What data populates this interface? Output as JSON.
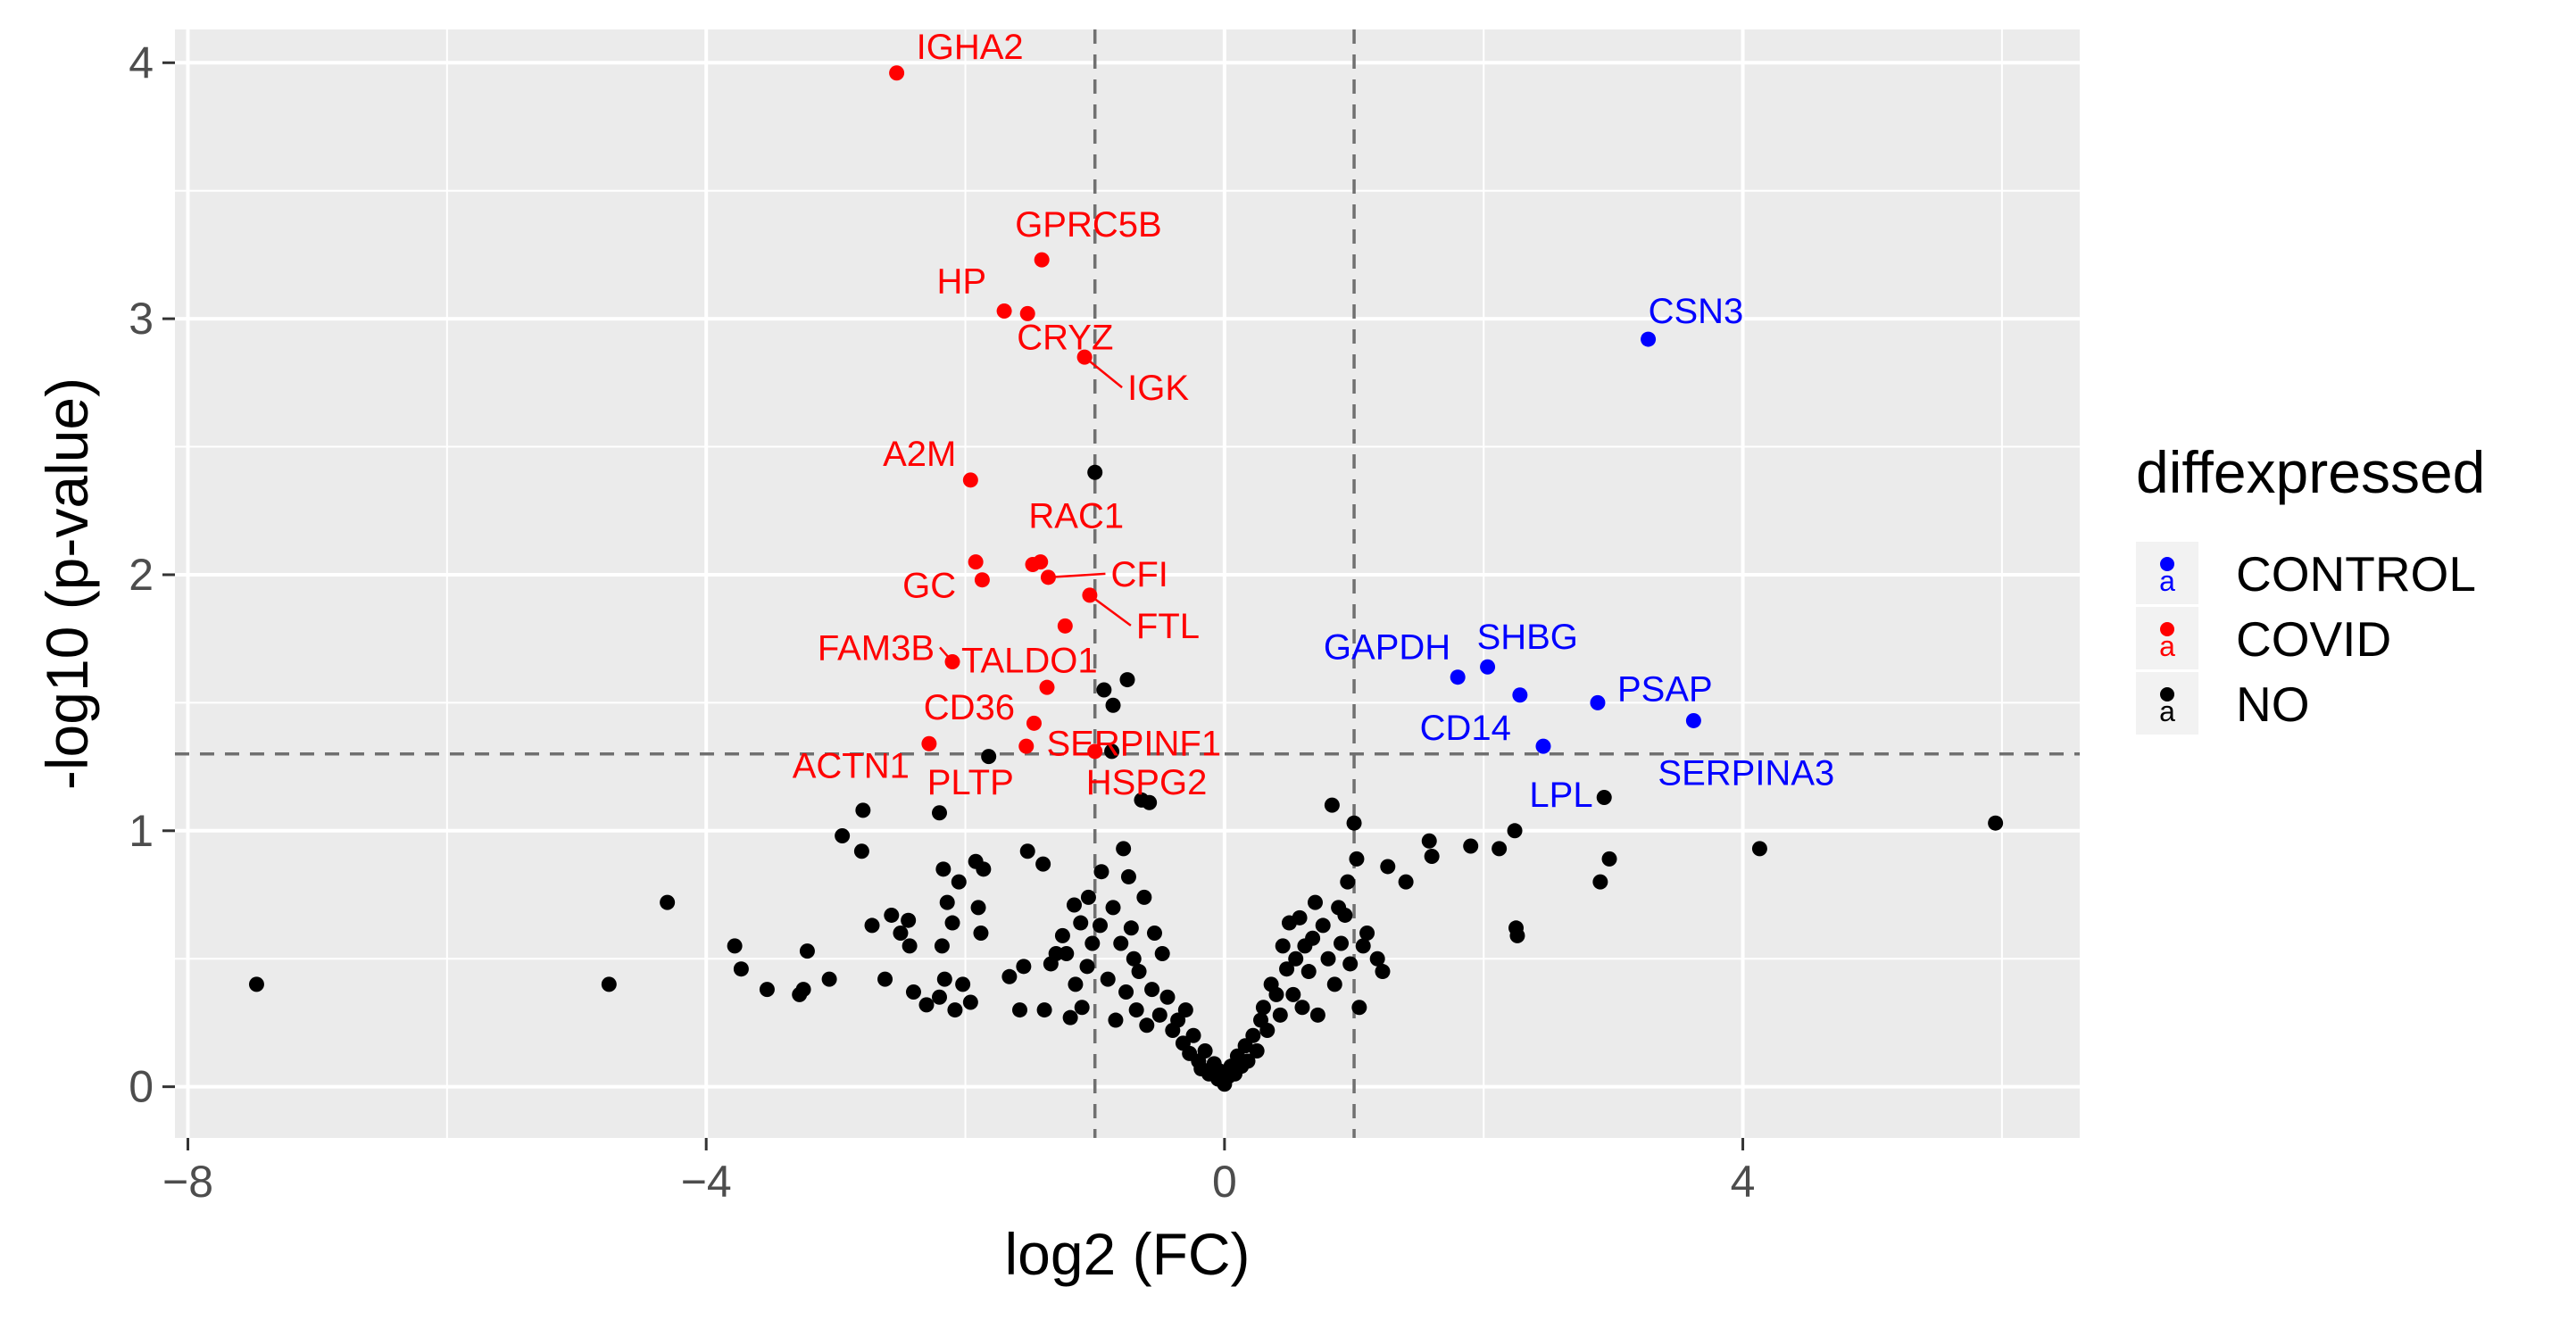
{
  "chart_data": {
    "type": "scatter",
    "title": "",
    "xlabel": "log2 (FC)",
    "ylabel": "-log10 (p-value)",
    "xlim": [
      -8.1,
      6.6
    ],
    "ylim": [
      -0.2,
      4.13
    ],
    "x_ticks": [
      -8,
      -4,
      0,
      4
    ],
    "x_tick_labels": [
      "−8",
      "−4",
      "0",
      "4"
    ],
    "y_ticks": [
      0,
      1,
      2,
      3,
      4
    ],
    "y_tick_labels": [
      "0",
      "1",
      "2",
      "3",
      "4"
    ],
    "grid": true,
    "background": "#ebebeb",
    "thresholds": {
      "vlines": [
        -1,
        1
      ],
      "hline": 1.3,
      "style": "dashed",
      "color": "#707070"
    },
    "legend": {
      "title": "diffexpressed",
      "placement": "right",
      "key_glyph": "a",
      "entries": [
        {
          "label": "CONTROL",
          "color": "#0000ff"
        },
        {
          "label": "COVID",
          "color": "#ff0000"
        },
        {
          "label": "NO",
          "color": "#000000"
        }
      ]
    },
    "colors": {
      "CONTROL": "#0000ff",
      "COVID": "#ff0000",
      "NO": "#000000"
    },
    "series": [
      {
        "name": "CONTROL",
        "points": [
          {
            "x": 3.27,
            "y": 2.92
          },
          {
            "x": 1.8,
            "y": 1.6
          },
          {
            "x": 2.03,
            "y": 1.64
          },
          {
            "x": 2.28,
            "y": 1.53
          },
          {
            "x": 2.46,
            "y": 1.33
          },
          {
            "x": 2.88,
            "y": 1.5
          },
          {
            "x": 3.62,
            "y": 1.43
          }
        ]
      },
      {
        "name": "COVID",
        "points": [
          {
            "x": -2.53,
            "y": 3.96
          },
          {
            "x": -1.41,
            "y": 3.23
          },
          {
            "x": -1.7,
            "y": 3.03
          },
          {
            "x": -1.52,
            "y": 3.02
          },
          {
            "x": -1.08,
            "y": 2.85
          },
          {
            "x": -1.96,
            "y": 2.37
          },
          {
            "x": -1.92,
            "y": 2.05
          },
          {
            "x": -1.87,
            "y": 1.98
          },
          {
            "x": -1.48,
            "y": 2.04
          },
          {
            "x": -1.42,
            "y": 2.05
          },
          {
            "x": -1.36,
            "y": 1.99
          },
          {
            "x": -1.04,
            "y": 1.92
          },
          {
            "x": -1.23,
            "y": 1.8
          },
          {
            "x": -2.1,
            "y": 1.66
          },
          {
            "x": -1.37,
            "y": 1.56
          },
          {
            "x": -1.47,
            "y": 1.42
          },
          {
            "x": -1.53,
            "y": 1.33
          },
          {
            "x": -2.28,
            "y": 1.34
          },
          {
            "x": -1.0,
            "y": 1.31
          }
        ]
      },
      {
        "name": "NO",
        "points": [
          {
            "x": -7.47,
            "y": 0.4
          },
          {
            "x": -4.75,
            "y": 0.4
          },
          {
            "x": -4.3,
            "y": 0.72
          },
          {
            "x": -3.78,
            "y": 0.55
          },
          {
            "x": -3.73,
            "y": 0.46
          },
          {
            "x": -3.53,
            "y": 0.38
          },
          {
            "x": -3.25,
            "y": 0.38
          },
          {
            "x": -3.28,
            "y": 0.36
          },
          {
            "x": -3.22,
            "y": 0.53
          },
          {
            "x": -3.05,
            "y": 0.42
          },
          {
            "x": -2.95,
            "y": 0.98
          },
          {
            "x": -2.8,
            "y": 0.92
          },
          {
            "x": -2.79,
            "y": 1.08
          },
          {
            "x": -2.72,
            "y": 0.63
          },
          {
            "x": -2.62,
            "y": 0.42
          },
          {
            "x": -2.57,
            "y": 0.67
          },
          {
            "x": -2.5,
            "y": 0.6
          },
          {
            "x": -2.43,
            "y": 0.55
          },
          {
            "x": -2.44,
            "y": 0.65
          },
          {
            "x": -2.4,
            "y": 0.37
          },
          {
            "x": -2.3,
            "y": 0.32
          },
          {
            "x": -2.2,
            "y": 1.07
          },
          {
            "x": -2.17,
            "y": 0.85
          },
          {
            "x": -2.14,
            "y": 0.72
          },
          {
            "x": -2.05,
            "y": 0.8
          },
          {
            "x": -2.1,
            "y": 0.64
          },
          {
            "x": -2.18,
            "y": 0.55
          },
          {
            "x": -2.16,
            "y": 0.42
          },
          {
            "x": -2.2,
            "y": 0.35
          },
          {
            "x": -2.08,
            "y": 0.3
          },
          {
            "x": -2.02,
            "y": 0.4
          },
          {
            "x": -1.96,
            "y": 0.33
          },
          {
            "x": -1.92,
            "y": 0.88
          },
          {
            "x": -1.86,
            "y": 0.85
          },
          {
            "x": -1.9,
            "y": 0.7
          },
          {
            "x": -1.88,
            "y": 0.6
          },
          {
            "x": -1.82,
            "y": 1.29
          },
          {
            "x": -1.66,
            "y": 0.43
          },
          {
            "x": -1.58,
            "y": 0.3
          },
          {
            "x": -1.55,
            "y": 0.47
          },
          {
            "x": -1.52,
            "y": 0.92
          },
          {
            "x": -1.4,
            "y": 0.87
          },
          {
            "x": -1.39,
            "y": 0.3
          },
          {
            "x": -1.34,
            "y": 0.48
          },
          {
            "x": -1.3,
            "y": 0.52
          },
          {
            "x": -1.25,
            "y": 0.59
          },
          {
            "x": -1.22,
            "y": 0.52
          },
          {
            "x": -1.16,
            "y": 0.71
          },
          {
            "x": -1.19,
            "y": 0.27
          },
          {
            "x": -1.15,
            "y": 0.4
          },
          {
            "x": -1.11,
            "y": 0.64
          },
          {
            "x": -1.1,
            "y": 0.31
          },
          {
            "x": -1.06,
            "y": 0.47
          },
          {
            "x": -1.05,
            "y": 0.74
          },
          {
            "x": -1.02,
            "y": 0.56
          },
          {
            "x": -1.0,
            "y": 2.4
          },
          {
            "x": -0.96,
            "y": 0.63
          },
          {
            "x": -0.93,
            "y": 1.55
          },
          {
            "x": -0.95,
            "y": 0.84
          },
          {
            "x": -0.9,
            "y": 0.42
          },
          {
            "x": -0.87,
            "y": 1.31
          },
          {
            "x": -0.86,
            "y": 1.49
          },
          {
            "x": -0.86,
            "y": 0.7
          },
          {
            "x": -0.84,
            "y": 0.26
          },
          {
            "x": -0.8,
            "y": 0.56
          },
          {
            "x": -0.78,
            "y": 0.93
          },
          {
            "x": -0.75,
            "y": 1.59
          },
          {
            "x": -0.76,
            "y": 0.37
          },
          {
            "x": -0.74,
            "y": 0.82
          },
          {
            "x": -0.72,
            "y": 0.62
          },
          {
            "x": -0.7,
            "y": 0.5
          },
          {
            "x": -0.68,
            "y": 0.3
          },
          {
            "x": -0.66,
            "y": 0.45
          },
          {
            "x": -0.64,
            "y": 1.12
          },
          {
            "x": -0.62,
            "y": 0.74
          },
          {
            "x": -0.6,
            "y": 0.24
          },
          {
            "x": -0.58,
            "y": 1.11
          },
          {
            "x": -0.56,
            "y": 0.38
          },
          {
            "x": -0.54,
            "y": 0.6
          },
          {
            "x": -0.5,
            "y": 0.28
          },
          {
            "x": -0.48,
            "y": 0.52
          },
          {
            "x": -0.44,
            "y": 0.35
          },
          {
            "x": -0.4,
            "y": 0.22
          },
          {
            "x": -0.36,
            "y": 0.26
          },
          {
            "x": -0.32,
            "y": 0.17
          },
          {
            "x": -0.3,
            "y": 0.3
          },
          {
            "x": -0.27,
            "y": 0.13
          },
          {
            "x": -0.24,
            "y": 0.2
          },
          {
            "x": -0.2,
            "y": 0.1
          },
          {
            "x": -0.18,
            "y": 0.07
          },
          {
            "x": -0.15,
            "y": 0.14
          },
          {
            "x": -0.12,
            "y": 0.05
          },
          {
            "x": -0.08,
            "y": 0.09
          },
          {
            "x": -0.05,
            "y": 0.03
          },
          {
            "x": -0.03,
            "y": 0.06
          },
          {
            "x": 0.0,
            "y": 0.01
          },
          {
            "x": 0.03,
            "y": 0.04
          },
          {
            "x": 0.05,
            "y": 0.08
          },
          {
            "x": 0.08,
            "y": 0.05
          },
          {
            "x": 0.1,
            "y": 0.12
          },
          {
            "x": 0.13,
            "y": 0.08
          },
          {
            "x": 0.16,
            "y": 0.16
          },
          {
            "x": 0.18,
            "y": 0.1
          },
          {
            "x": 0.22,
            "y": 0.2
          },
          {
            "x": 0.25,
            "y": 0.14
          },
          {
            "x": 0.28,
            "y": 0.26
          },
          {
            "x": 0.3,
            "y": 0.31
          },
          {
            "x": 0.33,
            "y": 0.22
          },
          {
            "x": 0.36,
            "y": 0.4
          },
          {
            "x": 0.4,
            "y": 0.36
          },
          {
            "x": 0.43,
            "y": 0.28
          },
          {
            "x": 0.45,
            "y": 0.55
          },
          {
            "x": 0.48,
            "y": 0.46
          },
          {
            "x": 0.5,
            "y": 0.64
          },
          {
            "x": 0.53,
            "y": 0.36
          },
          {
            "x": 0.55,
            "y": 0.5
          },
          {
            "x": 0.58,
            "y": 0.66
          },
          {
            "x": 0.6,
            "y": 0.31
          },
          {
            "x": 0.62,
            "y": 0.55
          },
          {
            "x": 0.65,
            "y": 0.45
          },
          {
            "x": 0.68,
            "y": 0.58
          },
          {
            "x": 0.7,
            "y": 0.72
          },
          {
            "x": 0.72,
            "y": 0.28
          },
          {
            "x": 0.76,
            "y": 0.63
          },
          {
            "x": 0.8,
            "y": 0.5
          },
          {
            "x": 0.83,
            "y": 1.1
          },
          {
            "x": 0.85,
            "y": 0.4
          },
          {
            "x": 0.88,
            "y": 0.7
          },
          {
            "x": 0.9,
            "y": 0.56
          },
          {
            "x": 0.93,
            "y": 0.67
          },
          {
            "x": 0.95,
            "y": 0.8
          },
          {
            "x": 0.97,
            "y": 0.48
          },
          {
            "x": 1.0,
            "y": 1.03
          },
          {
            "x": 1.02,
            "y": 0.89
          },
          {
            "x": 1.04,
            "y": 0.31
          },
          {
            "x": 1.07,
            "y": 0.55
          },
          {
            "x": 1.1,
            "y": 0.6
          },
          {
            "x": 1.18,
            "y": 0.5
          },
          {
            "x": 1.22,
            "y": 0.45
          },
          {
            "x": 1.26,
            "y": 0.86
          },
          {
            "x": 1.4,
            "y": 0.8
          },
          {
            "x": 1.58,
            "y": 0.96
          },
          {
            "x": 1.6,
            "y": 0.9
          },
          {
            "x": 1.9,
            "y": 0.94
          },
          {
            "x": 2.12,
            "y": 0.93
          },
          {
            "x": 2.24,
            "y": 1.0
          },
          {
            "x": 2.25,
            "y": 0.62
          },
          {
            "x": 2.26,
            "y": 0.59
          },
          {
            "x": 2.9,
            "y": 0.8
          },
          {
            "x": 2.93,
            "y": 1.13
          },
          {
            "x": 2.97,
            "y": 0.89
          },
          {
            "x": 4.13,
            "y": 0.93
          },
          {
            "x": 5.95,
            "y": 1.03
          }
        ]
      }
    ],
    "annotations": [
      {
        "text": "IGHA2",
        "series": "COVID",
        "x": -2.53,
        "y": 3.96
      },
      {
        "text": "GPRC5B",
        "series": "COVID",
        "x": -1.41,
        "y": 3.23
      },
      {
        "text": "HP",
        "series": "COVID",
        "x": -1.7,
        "y": 3.03
      },
      {
        "text": "CRYZ",
        "series": "COVID",
        "x": -1.52,
        "y": 3.02
      },
      {
        "text": "IGK",
        "series": "COVID",
        "x": -1.08,
        "y": 2.85
      },
      {
        "text": "A2M",
        "series": "COVID",
        "x": -1.96,
        "y": 2.37
      },
      {
        "text": "RAC1",
        "series": "COVID",
        "x": -1.42,
        "y": 2.05
      },
      {
        "text": "GC",
        "series": "COVID",
        "x": -1.92,
        "y": 2.05
      },
      {
        "text": "CFI",
        "series": "COVID",
        "x": -1.36,
        "y": 1.99
      },
      {
        "text": "FTL",
        "series": "COVID",
        "x": -1.04,
        "y": 1.92
      },
      {
        "text": "FAM3B",
        "series": "COVID",
        "x": -2.1,
        "y": 1.66
      },
      {
        "text": "TALDO1",
        "series": "COVID",
        "x": -1.23,
        "y": 1.8
      },
      {
        "text": "CD36",
        "series": "COVID",
        "x": -1.37,
        "y": 1.56
      },
      {
        "text": "SERPINF1",
        "series": "COVID",
        "x": -1.47,
        "y": 1.42
      },
      {
        "text": "ACTN1",
        "series": "COVID",
        "x": -2.28,
        "y": 1.34
      },
      {
        "text": "PLTP",
        "series": "COVID",
        "x": -1.53,
        "y": 1.33
      },
      {
        "text": "HSPG2",
        "series": "COVID",
        "x": -1.0,
        "y": 1.31
      },
      {
        "text": "CSN3",
        "series": "CONTROL",
        "x": 3.27,
        "y": 2.92
      },
      {
        "text": "GAPDH",
        "series": "CONTROL",
        "x": 1.8,
        "y": 1.6
      },
      {
        "text": "SHBG",
        "series": "CONTROL",
        "x": 2.03,
        "y": 1.64
      },
      {
        "text": "PSAP",
        "series": "CONTROL",
        "x": 2.88,
        "y": 1.5
      },
      {
        "text": "CD14",
        "series": "CONTROL",
        "x": 2.28,
        "y": 1.53
      },
      {
        "text": "SERPINA3",
        "series": "CONTROL",
        "x": 3.62,
        "y": 1.43
      },
      {
        "text": "LPL",
        "series": "CONTROL",
        "x": 2.46,
        "y": 1.33
      }
    ]
  }
}
